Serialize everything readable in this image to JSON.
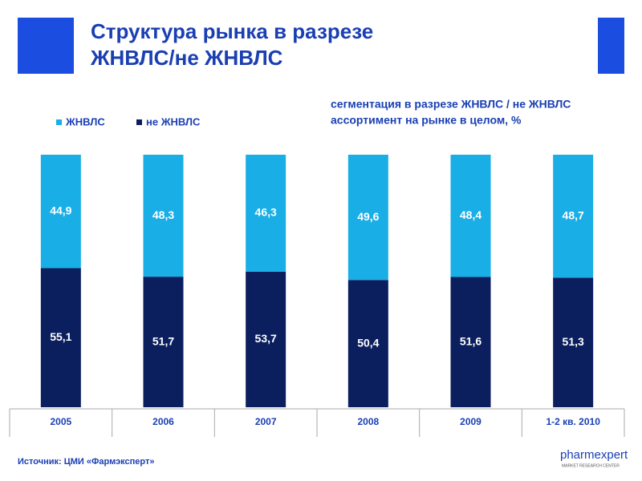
{
  "chart_data": {
    "type": "stacked-bar",
    "title": [
      "Структура рынка в разрезе",
      "ЖНВЛС/не ЖНВЛС"
    ],
    "subtitle": [
      "сегментация в разрезе ЖНВЛС / не ЖНВЛС",
      "ассортимент на рынке в целом, %"
    ],
    "categories": [
      "2005",
      "2006",
      "2007",
      "2008",
      "2009",
      "1-2 кв. 2010"
    ],
    "series": [
      {
        "name": "ЖНВЛС",
        "color": "#1aaee6",
        "values": [
          44.9,
          48.3,
          46.3,
          49.6,
          48.4,
          48.7
        ],
        "value_labels": [
          "44,9",
          "48,3",
          "46,3",
          "49,6",
          "48,4",
          "48,7"
        ]
      },
      {
        "name": "не ЖНВЛС",
        "color": "#0b1f5e",
        "values": [
          55.1,
          51.7,
          53.7,
          50.4,
          51.6,
          51.3
        ],
        "value_labels": [
          "55,1",
          "51,7",
          "53,7",
          "50,4",
          "51,6",
          "51,3"
        ]
      }
    ],
    "legend": "top-left",
    "source": "Источник: ЦМИ «Фармэксперт»"
  },
  "logo": "pharmexpert",
  "logo_subtitle": "MARKET RESEARCH CENTER"
}
